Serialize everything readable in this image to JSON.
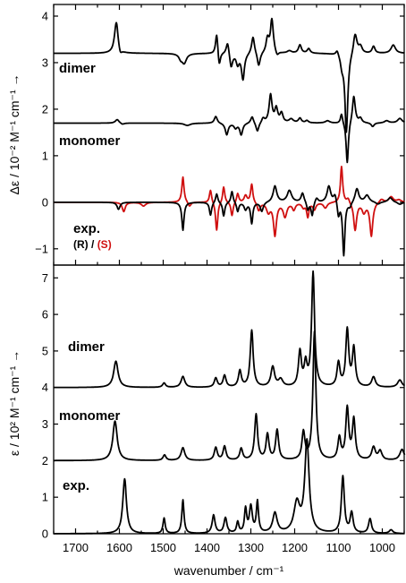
{
  "chart_data": [
    {
      "type": "line",
      "panel": "top",
      "ylabel": "Δε / 10⁻² M⁻¹ cm⁻¹ →",
      "ylim": [
        -1.35,
        4.25
      ],
      "yticks": [
        -1,
        0,
        1,
        2,
        3,
        4
      ],
      "annotations": [
        "dimer",
        "monomer",
        "exp."
      ],
      "legend": {
        "r_label": "(R)",
        "sep": " / ",
        "s_label": "(S)"
      },
      "series": [
        {
          "key": "dimer_vcd",
          "color": "#000000",
          "baseline": 3.2,
          "peaks": [
            [
              1607,
              0.68,
              5
            ],
            [
              1598,
              -0.12,
              4
            ],
            [
              1452,
              -0.2,
              6
            ],
            [
              1460,
              -0.1,
              5
            ],
            [
              1378,
              0.45,
              3
            ],
            [
              1372,
              -0.3,
              3
            ],
            [
              1353,
              0.28,
              4
            ],
            [
              1345,
              -0.32,
              4
            ],
            [
              1330,
              -0.22,
              4
            ],
            [
              1318,
              -0.56,
              4
            ],
            [
              1295,
              0.38,
              4
            ],
            [
              1282,
              -0.3,
              4
            ],
            [
              1262,
              0.3,
              4
            ],
            [
              1252,
              0.72,
              4
            ],
            [
              1240,
              -0.1,
              4
            ],
            [
              1212,
              0.05,
              6
            ],
            [
              1188,
              0.18,
              4
            ],
            [
              1168,
              0.1,
              4
            ],
            [
              1103,
              0.12,
              4
            ],
            [
              1092,
              -0.22,
              4
            ],
            [
              1082,
              -1.7,
              4
            ],
            [
              1062,
              0.45,
              5
            ],
            [
              1050,
              0.15,
              5
            ],
            [
              1020,
              0.15,
              4
            ],
            [
              975,
              0.18,
              6
            ]
          ]
        },
        {
          "key": "monomer_vcd",
          "color": "#000000",
          "baseline": 1.7,
          "peaks": [
            [
              1605,
              0.08,
              5
            ],
            [
              1593,
              -0.03,
              5
            ],
            [
              1445,
              -0.05,
              8
            ],
            [
              1380,
              0.15,
              4
            ],
            [
              1355,
              -0.25,
              4
            ],
            [
              1335,
              -0.1,
              4
            ],
            [
              1322,
              -0.25,
              4
            ],
            [
              1297,
              0.15,
              4
            ],
            [
              1285,
              -0.2,
              4
            ],
            [
              1272,
              0.1,
              4
            ],
            [
              1255,
              0.6,
              4
            ],
            [
              1242,
              0.3,
              4
            ],
            [
              1230,
              0.2,
              4
            ],
            [
              1208,
              0.08,
              6
            ],
            [
              1188,
              0.1,
              4
            ],
            [
              1172,
              0.05,
              4
            ],
            [
              1125,
              0.05,
              6
            ],
            [
              1093,
              0.22,
              3
            ],
            [
              1080,
              -0.9,
              3
            ],
            [
              1065,
              0.6,
              4
            ],
            [
              1050,
              0.1,
              4
            ],
            [
              1022,
              -0.08,
              4
            ],
            [
              990,
              0.05,
              6
            ],
            [
              960,
              0.1,
              6
            ]
          ]
        },
        {
          "key": "exp_R",
          "color": "#000000",
          "baseline": 0.0,
          "peaks": [
            [
              1602,
              -0.15,
              4
            ],
            [
              1455,
              -0.6,
              3
            ],
            [
              1392,
              -0.28,
              3
            ],
            [
              1378,
              0.2,
              3
            ],
            [
              1362,
              -0.3,
              3
            ],
            [
              1343,
              0.25,
              3
            ],
            [
              1330,
              -0.2,
              3
            ],
            [
              1312,
              -0.15,
              4
            ],
            [
              1298,
              -0.45,
              3
            ],
            [
              1275,
              -0.2,
              4
            ],
            [
              1245,
              0.35,
              5
            ],
            [
              1212,
              0.25,
              6
            ],
            [
              1182,
              0.2,
              4
            ],
            [
              1170,
              -0.18,
              3
            ],
            [
              1160,
              -0.3,
              3
            ],
            [
              1150,
              0.1,
              4
            ],
            [
              1122,
              0.35,
              5
            ],
            [
              1108,
              0.18,
              4
            ],
            [
              1100,
              -0.3,
              3
            ],
            [
              1088,
              -1.15,
              3
            ],
            [
              1074,
              -0.1,
              4
            ],
            [
              1058,
              0.3,
              5
            ],
            [
              1035,
              0.15,
              6
            ],
            [
              1010,
              -0.05,
              6
            ],
            [
              982,
              0.1,
              6
            ],
            [
              960,
              -0.05,
              6
            ]
          ]
        },
        {
          "key": "exp_S",
          "color": "#d01010",
          "baseline": 0.0,
          "peaks": [
            [
              1590,
              -0.2,
              4
            ],
            [
              1545,
              -0.08,
              6
            ],
            [
              1455,
              0.55,
              3
            ],
            [
              1440,
              -0.1,
              4
            ],
            [
              1392,
              0.28,
              3
            ],
            [
              1378,
              -0.62,
              3
            ],
            [
              1362,
              0.35,
              3
            ],
            [
              1343,
              -0.3,
              3
            ],
            [
              1330,
              0.2,
              3
            ],
            [
              1312,
              0.15,
              4
            ],
            [
              1298,
              0.4,
              3
            ],
            [
              1282,
              -0.18,
              4
            ],
            [
              1260,
              -0.2,
              5
            ],
            [
              1245,
              -0.7,
              4
            ],
            [
              1222,
              -0.3,
              5
            ],
            [
              1202,
              -0.15,
              4
            ],
            [
              1180,
              -0.1,
              4
            ],
            [
              1170,
              -0.3,
              3
            ],
            [
              1155,
              -0.15,
              4
            ],
            [
              1130,
              -0.12,
              5
            ],
            [
              1093,
              0.78,
              3
            ],
            [
              1078,
              0.1,
              4
            ],
            [
              1062,
              -0.6,
              4
            ],
            [
              1042,
              -0.2,
              5
            ],
            [
              1025,
              -0.72,
              4
            ],
            [
              1002,
              0.08,
              6
            ],
            [
              980,
              0.12,
              6
            ],
            [
              962,
              0.05,
              6
            ]
          ]
        }
      ]
    },
    {
      "type": "line",
      "panel": "bottom",
      "xlabel": "wavenumber / cm⁻¹",
      "ylabel": "ε / 10² M⁻¹ cm⁻¹ →",
      "xlim": [
        1750,
        950
      ],
      "xticks": [
        1700,
        1600,
        1500,
        1400,
        1300,
        1200,
        1100,
        1000
      ],
      "ylim": [
        0,
        7.35
      ],
      "yticks": [
        0,
        1,
        2,
        3,
        4,
        5,
        6,
        7
      ],
      "annotations": [
        "dimer",
        "monomer",
        "exp."
      ],
      "series": [
        {
          "key": "dimer_ir",
          "color": "#000000",
          "baseline": 4.0,
          "peaks": [
            [
              1608,
              0.72,
              6
            ],
            [
              1498,
              0.12,
              4
            ],
            [
              1455,
              0.3,
              5
            ],
            [
              1380,
              0.25,
              4
            ],
            [
              1360,
              0.32,
              4
            ],
            [
              1325,
              0.45,
              4
            ],
            [
              1298,
              1.55,
              4
            ],
            [
              1250,
              0.55,
              5
            ],
            [
              1232,
              0.2,
              6
            ],
            [
              1188,
              0.95,
              4
            ],
            [
              1175,
              0.6,
              4
            ],
            [
              1158,
              3.12,
              4
            ],
            [
              1100,
              0.65,
              4
            ],
            [
              1080,
              1.55,
              4
            ],
            [
              1065,
              1.05,
              4
            ],
            [
              1020,
              0.28,
              5
            ],
            [
              960,
              0.2,
              6
            ]
          ]
        },
        {
          "key": "monomer_ir",
          "color": "#000000",
          "baseline": 2.0,
          "peaks": [
            [
              1610,
              1.08,
              6
            ],
            [
              1497,
              0.15,
              4
            ],
            [
              1455,
              0.35,
              5
            ],
            [
              1380,
              0.35,
              4
            ],
            [
              1360,
              0.38,
              4
            ],
            [
              1322,
              0.32,
              4
            ],
            [
              1288,
              1.25,
              4
            ],
            [
              1262,
              0.7,
              4
            ],
            [
              1240,
              0.82,
              4
            ],
            [
              1180,
              0.75,
              4
            ],
            [
              1155,
              3.5,
              4
            ],
            [
              1098,
              0.6,
              4
            ],
            [
              1080,
              1.4,
              4
            ],
            [
              1065,
              1.1,
              4
            ],
            [
              1020,
              0.35,
              5
            ],
            [
              1005,
              0.25,
              5
            ],
            [
              955,
              0.3,
              6
            ]
          ]
        },
        {
          "key": "exp_ir",
          "color": "#000000",
          "baseline": 0.0,
          "peaks": [
            [
              1588,
              1.5,
              5
            ],
            [
              1498,
              0.42,
              3
            ],
            [
              1455,
              0.92,
              3
            ],
            [
              1385,
              0.5,
              4
            ],
            [
              1358,
              0.42,
              4
            ],
            [
              1330,
              0.3,
              3
            ],
            [
              1312,
              0.65,
              3
            ],
            [
              1300,
              0.72,
              4
            ],
            [
              1285,
              0.85,
              3
            ],
            [
              1245,
              0.55,
              6
            ],
            [
              1195,
              0.8,
              8
            ],
            [
              1172,
              2.5,
              6
            ],
            [
              1090,
              1.55,
              4
            ],
            [
              1070,
              0.55,
              4
            ],
            [
              1028,
              0.4,
              4
            ],
            [
              980,
              0.1,
              5
            ]
          ]
        }
      ]
    }
  ]
}
